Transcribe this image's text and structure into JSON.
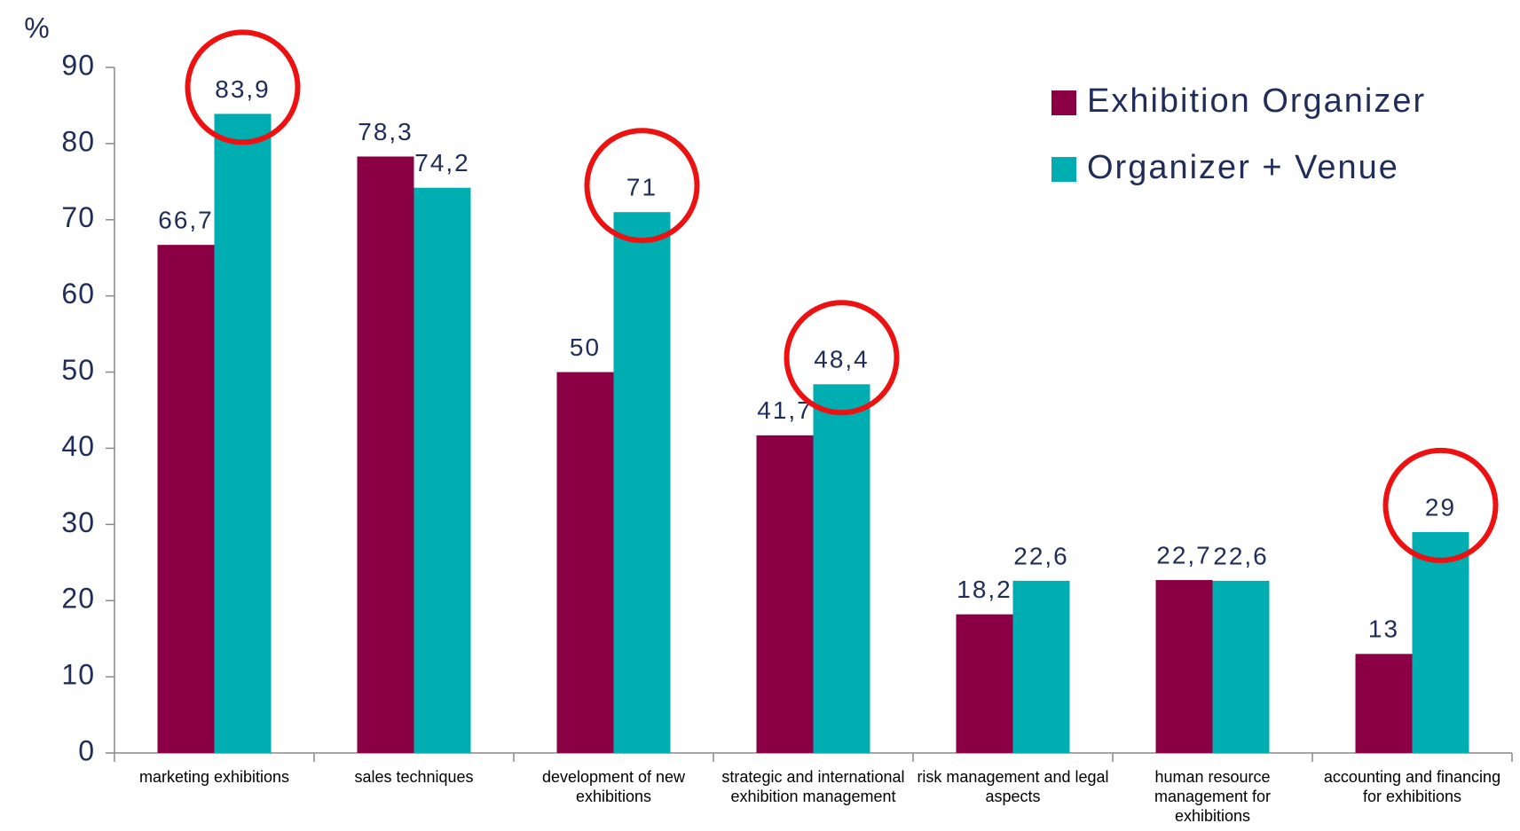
{
  "chart_data": {
    "type": "bar",
    "y_label": "%",
    "categories": [
      "marketing exhibitions",
      "sales techniques",
      "development of new exhibitions",
      "strategic and international exhibition management",
      "risk management and legal aspects",
      "human resource management for exhibitions",
      "accounting and financing for exhibitions"
    ],
    "series": [
      {
        "name": "Exhibition Organizer",
        "color": "#8b0045",
        "values": [
          66.7,
          78.3,
          50,
          41.7,
          18.2,
          22.7,
          13
        ],
        "value_labels": [
          "66,7",
          "78,3",
          "50",
          "41,7",
          "18,2",
          "22,7",
          "13"
        ]
      },
      {
        "name": "Organizer + Venue",
        "color": "#00adb0",
        "values": [
          83.9,
          74.2,
          71,
          48.4,
          22.6,
          22.6,
          29
        ],
        "value_labels": [
          "83,9",
          "74,2",
          "71",
          "48,4",
          "22,6",
          "22,6",
          "29"
        ],
        "circled": [
          0,
          2,
          3,
          6
        ]
      }
    ],
    "ylim": [
      0,
      90
    ],
    "yticks": [
      0,
      10,
      20,
      30,
      40,
      50,
      60,
      70,
      80,
      90
    ],
    "grid": false,
    "legend": "top-right"
  }
}
